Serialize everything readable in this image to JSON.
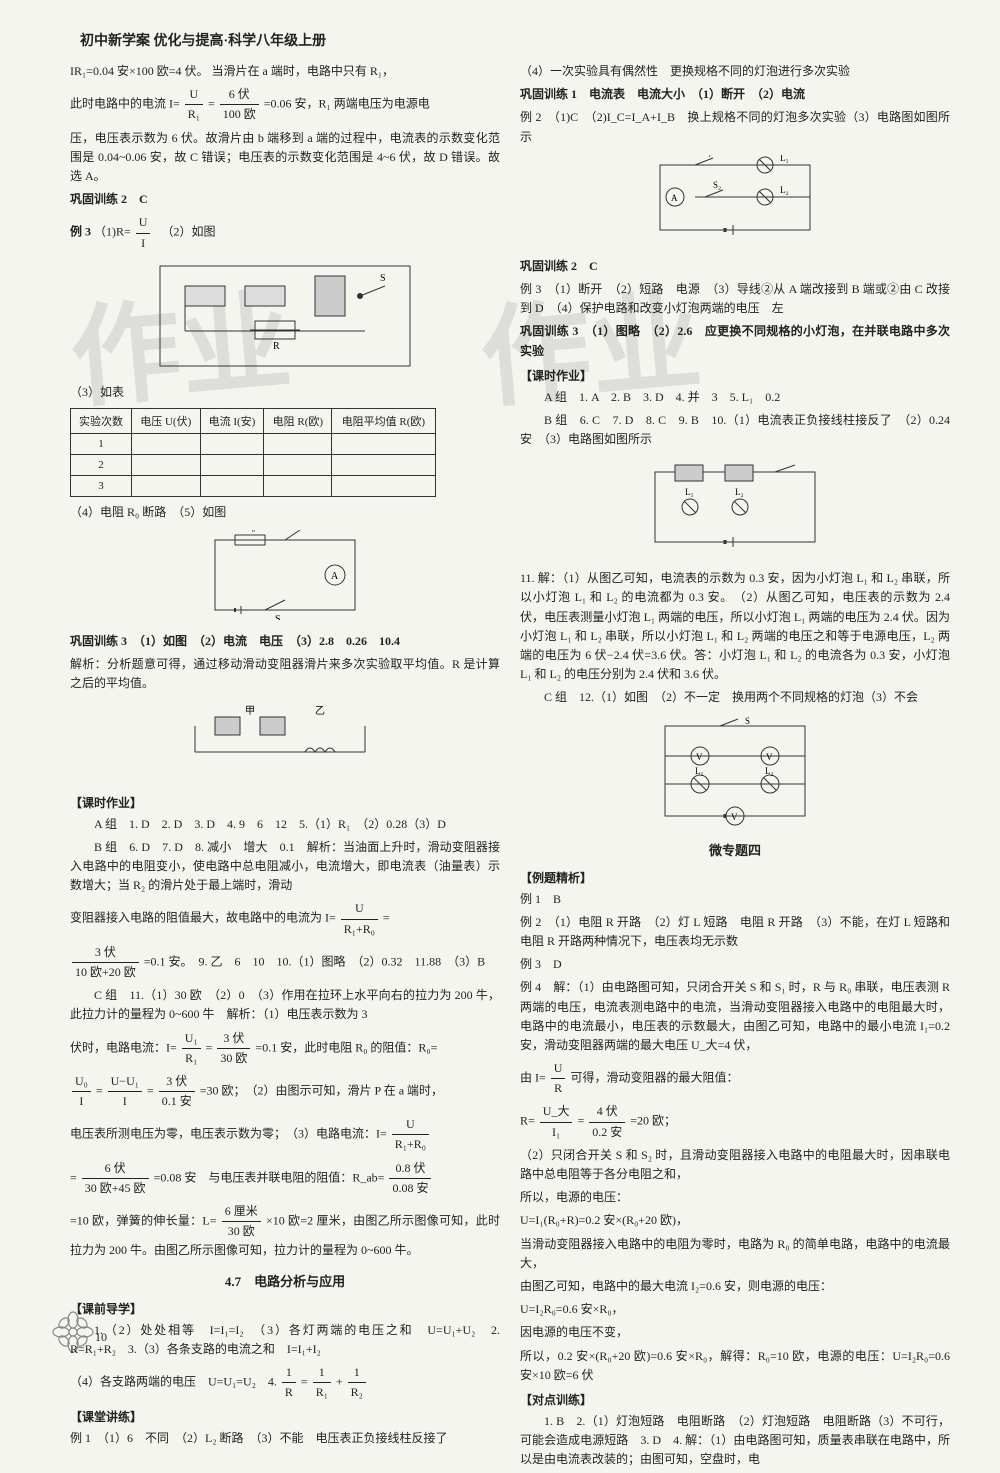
{
  "header": "初中新学案 优化与提高·科学八年级上册",
  "page_number": "10",
  "left": {
    "p1": "IR₁=0.04 安×100 欧=4 伏。  当滑片在 a 端时，电路中只有 R₁，",
    "p1b_pre": "此时电路中的电流 I=",
    "p1b_num": "U",
    "p1b_den": "R₁",
    "p1b_mid": "=",
    "p1b_num2": "6 伏",
    "p1b_den2": "100 欧",
    "p1b_post": "=0.06 安，R₁ 两端电压为电源电",
    "p2": "压，电压表示数为 6 伏。故滑片由 b 端移到 a 端的过程中，电流表的示数变化范围是 0.04~0.06 安，故 C 错误；电压表的示数变化范围是 4~6 伏，故 D 错误。故选 A。",
    "gonggu2": "巩固训练 2　C",
    "li3_label": "例 3",
    "li3_1_pre": "（1)R=",
    "li3_1_num": "U",
    "li3_1_den": "I",
    "li3_1_post": "　（2）如图",
    "p3_label": "（3）如表",
    "table": {
      "headers": [
        "实验次数",
        "电压 U(伏)",
        "电流 I(安)",
        "电阻 R(欧)",
        "电阻平均值 R(欧)"
      ],
      "rows": [
        [
          "1",
          "",
          "",
          "",
          ""
        ],
        [
          "2",
          "",
          "",
          "",
          ""
        ],
        [
          "3",
          "",
          "",
          "",
          ""
        ]
      ]
    },
    "p4": "（4）电阻 R₀ 断路　（5）如图",
    "gonggu3": "巩固训练 3　（1）如图　（2）电流　电压　（3）2.8　0.26　10.4",
    "gonggu3_jx": "解析：分析题意可得，通过移动滑动变阻器滑片来多次实验取平均值。R 是计算之后的平均值。",
    "keshi": "【课时作业】",
    "azu": "A 组　1. D　2. D　3. D　4. 9　6　12　5.（1）R₁　（2）0.28（3）D",
    "bzu1": "B 组　6. D　7. D　8. 减小　增大　0.1　解析：当油面上升时，滑动变阻器接入电路中的电阻变小，使电路中总电阻减小，电流增大，即电流表（油量表）示数增大；当 R₂ 的滑片处于最上端时，滑动",
    "bzu2_pre": "变阻器接入电路的阻值最大，故电路中的电流为 I=",
    "bzu2_num": "U",
    "bzu2_den": "R₁+R₀",
    "bzu2_post": "=",
    "bzu3_num": "3 伏",
    "bzu3_den": "10 欧+20 欧",
    "bzu3_post": "=0.1 安。　9. 乙　6　10　10.（1）图略　（2）0.32　11.88　（3）B",
    "czu1": "C 组　11.（1）30 欧　（2）0　（3）作用在拉环上水平向右的拉力为 200 牛，此拉力计的量程为 0~600 牛　解析：（1）电压表示数为 3",
    "czu2_pre": "伏时，电路电流：I=",
    "czu2_a_num": "U₁",
    "czu2_a_den": "R₁",
    "czu2_eq": "=",
    "czu2_b_num": "3 伏",
    "czu2_b_den": "30 欧",
    "czu2_post": "=0.1 安，此时电阻 R₀ 的阻值：R₀=",
    "czu3_a_num": "U₀",
    "czu3_a_den": "I",
    "czu3_eq": "=",
    "czu3_b_num": "U−U₁",
    "czu3_b_den": "I",
    "czu3_eq2": "=",
    "czu3_c_num": "3 伏",
    "czu3_c_den": "0.1 安",
    "czu3_post": "=30 欧；　（2）由图示可知，滑片 P 在 a 端时，",
    "czu4_pre": "电压表所测电压为零，电压表示数为零；　（3）电路电流：I=",
    "czu4_num": "U",
    "czu4_den": "R₁+R₀",
    "czu5_pre": "=",
    "czu5_num": "6 伏",
    "czu5_den": "30 欧+45 欧",
    "czu5_mid": "=0.08 安　与电压表并联电阻的阻值：R_ab=",
    "czu5_b_num": "0.8 伏",
    "czu5_b_den": "0.08 安",
    "czu6_pre": "=10 欧，弹簧的伸长量：L=",
    "czu6_num": "6 厘米",
    "czu6_den": "30 欧",
    "czu6_post": "×10 欧=2 厘米，由图乙所示图像可知，此时拉力为 200 牛。由图乙所示图像可知，拉力计的量程为 0~600 牛。",
    "sec47": "4.7　电路分析与应用",
    "kqdx": "【课前导学】",
    "kq1": "1.（2）处处相等　I=I₁=I₂　（3）各灯两端的电压之和　U=U₁+U₂　2. R=R₁+R₂　3.（3）各条支路的电流之和　I=I₁+I₂",
    "kq4_pre": "（4）各支路两端的电压　U=U₁=U₂　4. ",
    "kq4_a_num": "1",
    "kq4_a_den": "R",
    "kq4_eq": "=",
    "kq4_b_num": "1",
    "kq4_b_den": "R₁",
    "kq4_plus": "+",
    "kq4_c_num": "1",
    "kq4_c_den": "R₂",
    "ktjl": "【课堂讲练】",
    "li1": "例 1　（1）6　不同　（2）L₂ 断路　（3）不能　电压表正负接线柱反接了"
  },
  "right": {
    "p1": "（4）一次实验具有偶然性　更换规格不同的灯泡进行多次实验",
    "gg1": "巩固训练 1　电流表　电流大小　（1）断开　（2）电流",
    "li2": "例 2　（1)C　（2)I_C=I_A+I_B　换上规格不同的灯泡多次实验（3）电路图如图所示",
    "gg2": "巩固训练 2　C",
    "li3": "例 3　（1）断开　（2）短路　电源　（3）导线②从 A 端改接到 B 端或②由 C 改接到 D　（4）保护电路和改变小灯泡两端的电压　左",
    "gg3": "巩固训练 3　（1）图略　（2）2.6　应更换不同规格的小灯泡，在并联电路中多次实验",
    "keshi": "【课时作业】",
    "azu": "A 组　1. A　2. B　3. D　4. 并　3　5. L₁　0.2",
    "bzu": "B 组　6. C　7. D　8. C　9. B　10.（1）电流表正负接线柱接反了　（2）0.24 安　（3）电路图如图所示",
    "p11": "11. 解：（1）从图乙可知，电流表的示数为 0.3 安，因为小灯泡 L₁ 和 L₂ 串联，所以小灯泡 L₁ 和 L₂ 的电流都为 0.3 安。　（2）从图乙可知，电压表的示数为 2.4 伏，电压表测量小灯泡 L₁ 两端的电压，所以小灯泡 L₁ 两端的电压为 2.4 伏。因为小灯泡 L₁ 和 L₂ 串联，所以小灯泡 L₁ 和 L₂ 两端的电压之和等于电源电压，L₂ 两端的电压为 6 伏−2.4 伏=3.6 伏。答：小灯泡 L₁ 和 L₂ 的电流各为 0.3 安，小灯泡 L₁ 和 L₂ 的电压分别为 2.4 伏和 3.6 伏。",
    "czu": "C 组　12.（1）如图　（2）不一定　换用两个不同规格的灯泡（3）不会",
    "wzt": "微专题四",
    "ltjx": "【例题精析】",
    "wli1": "例 1　B",
    "wli2": "例 2　（1）电阻 R 开路　（2）灯 L 短路　电阻 R 开路　（3）不能，在灯 L 短路和电阻 R 开路两种情况下，电压表均无示数",
    "wli3": "例 3　D",
    "wli4a": "例 4　解：（1）由电路图可知，只闭合开关 S 和 S₁ 时，R 与 R₀ 串联，电压表测 R 两端的电压，电流表测电路中的电流，当滑动变阻器接入电路中的电阻最大时，电路中的电流最小，电压表的示数最大，由图乙可知，电路中的最小电流 I₁=0.2 安，滑动变阻器两端的最大电压 U_大=4 伏，",
    "wli4b_pre": "由 I=",
    "wli4b_num": "U",
    "wli4b_den": "R",
    "wli4b_post": "可得，滑动变阻器的最大阻值：",
    "wli4c_pre": "R=",
    "wli4c_a_num": "U_大",
    "wli4c_a_den": "I₁",
    "wli4c_eq": "=",
    "wli4c_b_num": "4 伏",
    "wli4c_b_den": "0.2 安",
    "wli4c_post": "=20 欧；",
    "wli4d": "（2）只闭合开关 S 和 S₂ 时，且滑动变阻器接入电路中的电阻最大时，因串联电路中总电阻等于各分电阻之和，",
    "wli4e": "所以，电源的电压：",
    "wli4f": "U=I₁(R₀+R)=0.2 安×(R₀+20 欧)，",
    "wli4g": "当滑动变阻器接入电路中的电阻为零时，电路为 R₀ 的简单电路，电路中的电流最大，",
    "wli4h": "由图乙可知，电路中的最大电流 I₂=0.6 安，则电源的电压：",
    "wli4i": "U=I₂R₀=0.6 安×R₀，",
    "wli4j": "因电源的电压不变，",
    "wli4k": "所以，0.2 安×(R₀+20 欧)=0.6 安×R₀，解得：R₀=10 欧，电源的电压：U=I₂R₀=0.6 安×10 欧=6 伏",
    "ddxl": "【对点训练】",
    "dd1": "1. B　2.（1）灯泡短路　电阻断路　（2）灯泡短路　电阻断路（3）不可行，可能会造成电源短路　3. D　4. 解：（1）由电路图可知，质量表串联在电路中，所以是由电流表改装的；由图可知，空盘时，电"
  },
  "watermark": "作业"
}
